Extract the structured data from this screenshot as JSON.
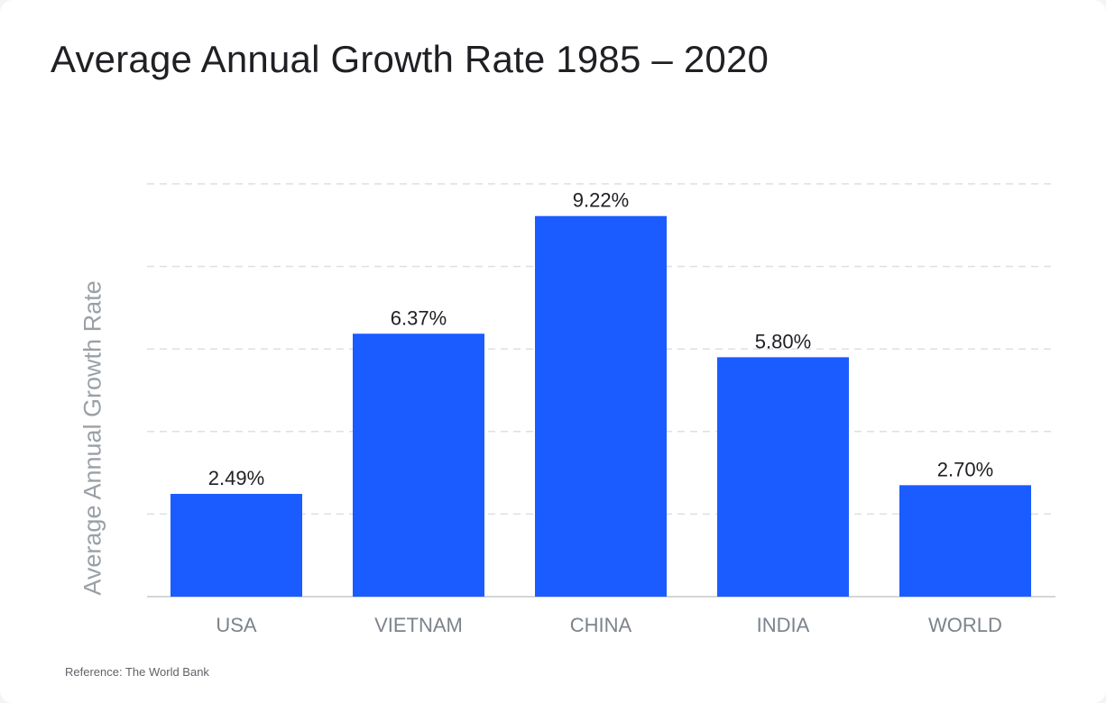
{
  "chart_data": {
    "type": "bar",
    "title": "Average Annual Growth Rate 1985 – 2020",
    "ylabel": "Average Annual Growth Rate",
    "xlabel": "",
    "categories": [
      "USA",
      "VIETNAM",
      "CHINA",
      "INDIA",
      "WORLD"
    ],
    "values": [
      2.49,
      6.37,
      9.22,
      5.8,
      2.7
    ],
    "data_labels": [
      "2.49%",
      "6.37%",
      "9.22%",
      "5.80%",
      "2.70%"
    ],
    "ylim": [
      0,
      10
    ],
    "grid_values": [
      2,
      4,
      6,
      8,
      10
    ],
    "grid": true,
    "bar_color": "#1a5cff"
  },
  "reference": "Reference: The World Bank"
}
